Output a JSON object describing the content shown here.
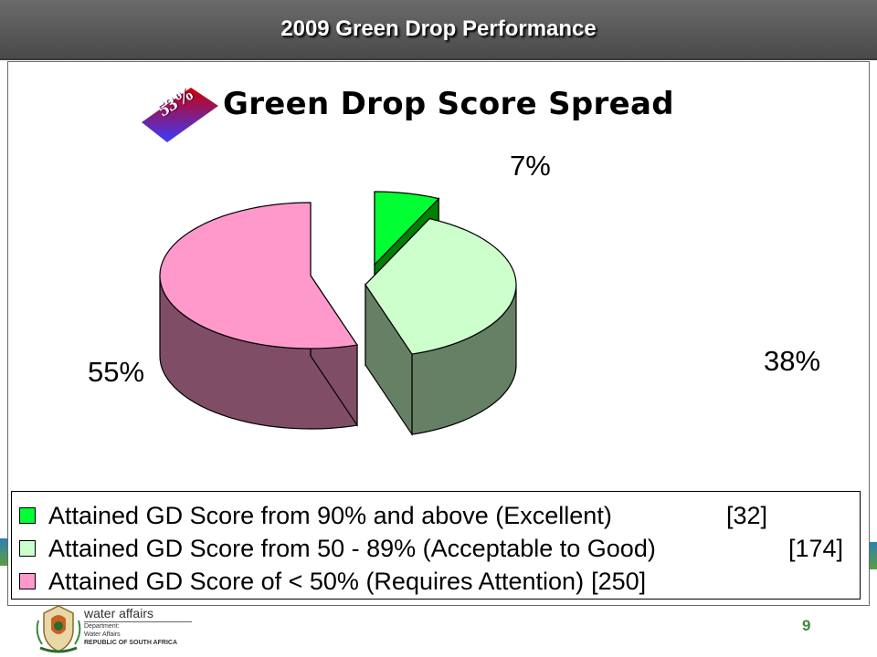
{
  "header": {
    "title": "2009 Green Drop Performance"
  },
  "badge": {
    "text": "53%",
    "color_top": "#cc0000",
    "color_bottom": "#3a3aff"
  },
  "chart_data": {
    "type": "pie",
    "title": "Green Drop Score Spread",
    "three_d": true,
    "slices": [
      {
        "label": "Attained GD Score from 90% and above (Excellent)",
        "count": "[32]",
        "percent_label": "7%",
        "value": 7,
        "color": "#00ff33",
        "side_color": "#008000"
      },
      {
        "label": "Attained GD Score from 50 - 89% (Acceptable to Good)",
        "count": "[174]",
        "percent_label": "38%",
        "value": 38,
        "color": "#ccffcc",
        "side_color": "#668066"
      },
      {
        "label": "Attained GD Score of < 50% (Requires Attention)",
        "count": "[250]",
        "percent_label": "55%",
        "value": 55,
        "color": "#ff99cc",
        "side_color": "#804d66"
      }
    ],
    "legend_position": "bottom"
  },
  "footer": {
    "dept_name": "water affairs",
    "dept_line1": "Department:",
    "dept_line2": "Water Affairs",
    "dept_line3": "REPUBLIC OF SOUTH AFRICA",
    "page_number": "9"
  }
}
